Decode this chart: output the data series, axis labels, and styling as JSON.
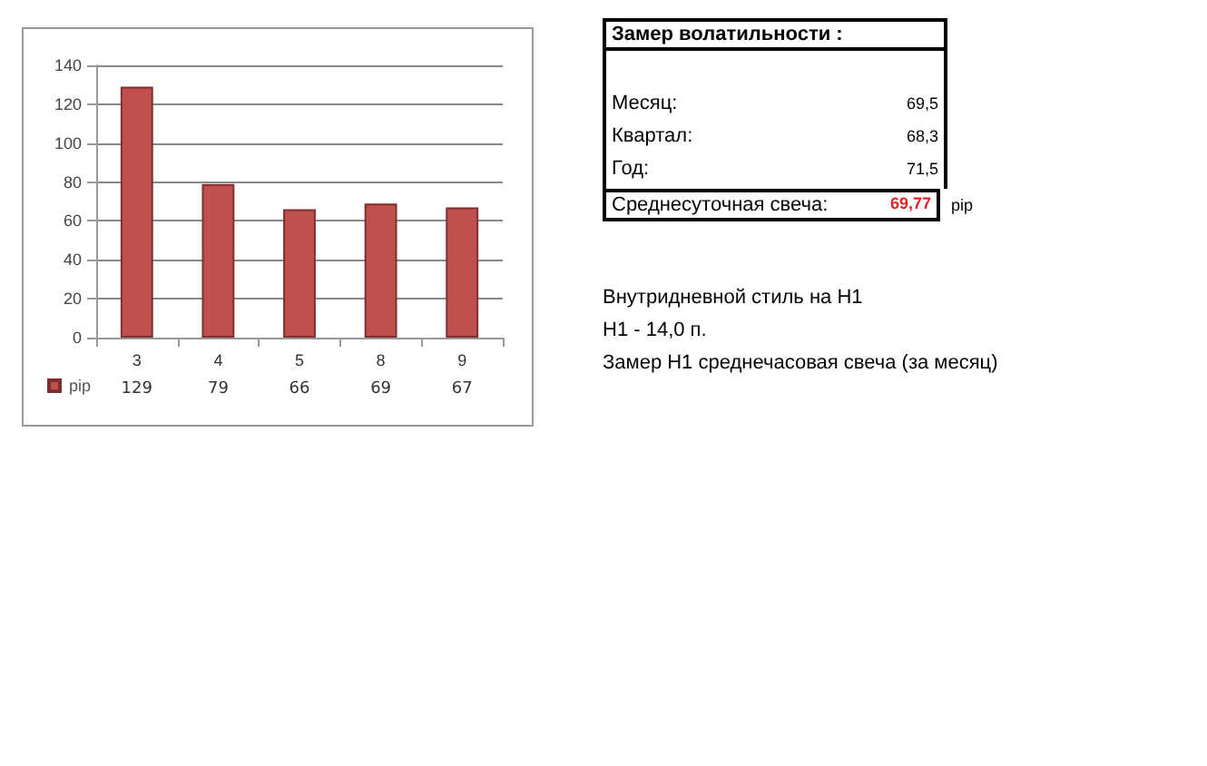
{
  "chart_data": [
    {
      "type": "bar",
      "categories": [
        "3",
        "4",
        "5",
        "8",
        "9"
      ],
      "series": [
        {
          "name": "pip",
          "color": "#c0504d",
          "values": [
            129,
            79,
            66,
            69,
            67
          ]
        }
      ],
      "ylim": [
        0,
        140
      ],
      "yticks": [
        0,
        20,
        40,
        60,
        80,
        100,
        120,
        140
      ],
      "grid": "y",
      "legend": "bottom left",
      "data_labels": true
    },
    {
      "type": "other",
      "title": "Замер  волатильности  :",
      "annotations": [
        "Месяц:",
        "69,5",
        "Квартал:",
        "68,3",
        "Год:",
        "71,5",
        "Среднесуточная свеча:",
        "69,77",
        "pip",
        "Внутридневной стиль на H1",
        "H1 - 14,0 п.",
        "Замер H1 среднечасовая свеча (за месяц)"
      ]
    }
  ]
}
